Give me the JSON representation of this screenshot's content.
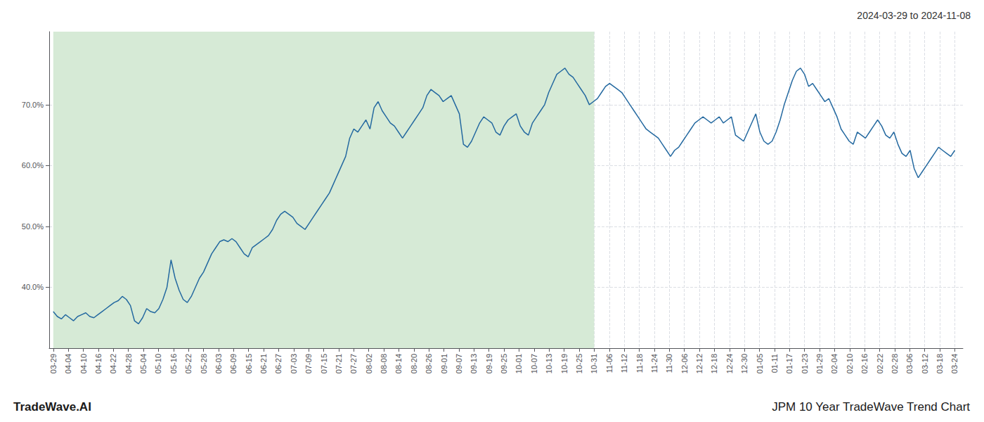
{
  "chart_data": {
    "type": "line",
    "title": "2024-03-29 to 2024-11-08",
    "annotations": [
      "TradeWave.AI",
      "JPM 10 Year TradeWave Trend Chart"
    ],
    "color": "#2469a0",
    "grid": true,
    "shaded_span": {
      "x": [
        0,
        133.2
      ],
      "color": "#d6ead6"
    },
    "xlim": [
      -1,
      224
    ],
    "xticks": [
      {
        "value": 0,
        "label": "03-29"
      },
      {
        "value": 3.7,
        "label": "04-04"
      },
      {
        "value": 7.4,
        "label": "04-10"
      },
      {
        "value": 11.1,
        "label": "04-16"
      },
      {
        "value": 14.8,
        "label": "04-22"
      },
      {
        "value": 18.5,
        "label": "04-28"
      },
      {
        "value": 22.2,
        "label": "05-04"
      },
      {
        "value": 25.9,
        "label": "05-10"
      },
      {
        "value": 29.6,
        "label": "05-16"
      },
      {
        "value": 33.3,
        "label": "05-22"
      },
      {
        "value": 37,
        "label": "05-28"
      },
      {
        "value": 40.7,
        "label": "06-03"
      },
      {
        "value": 44.4,
        "label": "06-09"
      },
      {
        "value": 48.1,
        "label": "06-15"
      },
      {
        "value": 51.8,
        "label": "06-21"
      },
      {
        "value": 55.5,
        "label": "06-27"
      },
      {
        "value": 59.2,
        "label": "07-03"
      },
      {
        "value": 62.9,
        "label": "07-09"
      },
      {
        "value": 66.6,
        "label": "07-15"
      },
      {
        "value": 70.3,
        "label": "07-21"
      },
      {
        "value": 74,
        "label": "07-27"
      },
      {
        "value": 77.7,
        "label": "08-02"
      },
      {
        "value": 81.4,
        "label": "08-08"
      },
      {
        "value": 85.1,
        "label": "08-14"
      },
      {
        "value": 88.8,
        "label": "08-20"
      },
      {
        "value": 92.5,
        "label": "08-26"
      },
      {
        "value": 96.2,
        "label": "09-01"
      },
      {
        "value": 99.9,
        "label": "09-07"
      },
      {
        "value": 103.6,
        "label": "09-13"
      },
      {
        "value": 107.3,
        "label": "09-19"
      },
      {
        "value": 111,
        "label": "09-25"
      },
      {
        "value": 114.7,
        "label": "10-01"
      },
      {
        "value": 118.4,
        "label": "10-07"
      },
      {
        "value": 122.1,
        "label": "10-13"
      },
      {
        "value": 125.8,
        "label": "10-19"
      },
      {
        "value": 129.5,
        "label": "10-25"
      },
      {
        "value": 133.2,
        "label": "10-31"
      },
      {
        "value": 136.9,
        "label": "11-06"
      },
      {
        "value": 140.6,
        "label": "11-12"
      },
      {
        "value": 144.3,
        "label": "11-18"
      },
      {
        "value": 148,
        "label": "11-24"
      },
      {
        "value": 151.7,
        "label": "11-30"
      },
      {
        "value": 155.4,
        "label": "12-06"
      },
      {
        "value": 159.1,
        "label": "12-12"
      },
      {
        "value": 162.8,
        "label": "12-18"
      },
      {
        "value": 166.5,
        "label": "12-24"
      },
      {
        "value": 170.2,
        "label": "12-30"
      },
      {
        "value": 173.9,
        "label": "01-05"
      },
      {
        "value": 177.6,
        "label": "01-11"
      },
      {
        "value": 181.3,
        "label": "01-17"
      },
      {
        "value": 185,
        "label": "01-23"
      },
      {
        "value": 188.7,
        "label": "01-29"
      },
      {
        "value": 192.4,
        "label": "02-04"
      },
      {
        "value": 196.1,
        "label": "02-10"
      },
      {
        "value": 199.8,
        "label": "02-16"
      },
      {
        "value": 203.5,
        "label": "02-22"
      },
      {
        "value": 207.2,
        "label": "02-28"
      },
      {
        "value": 210.9,
        "label": "03-06"
      },
      {
        "value": 214.6,
        "label": "03-12"
      },
      {
        "value": 218.3,
        "label": "03-18"
      },
      {
        "value": 222,
        "label": "03-24"
      }
    ],
    "ylim": [
      30,
      82
    ],
    "yticks": [
      {
        "value": 40.0,
        "label": "40.0%"
      },
      {
        "value": 50.0,
        "label": "50.0%"
      },
      {
        "value": 60.0,
        "label": "60.0%"
      },
      {
        "value": 70.0,
        "label": "70.0%"
      }
    ],
    "x": [
      0,
      1,
      2,
      3,
      4,
      5,
      6,
      7,
      8,
      9,
      10,
      11,
      12,
      13,
      14,
      15,
      16,
      17,
      18,
      19,
      20,
      21,
      22,
      23,
      24,
      25,
      26,
      27,
      28,
      29,
      30,
      31,
      32,
      33,
      34,
      35,
      36,
      37,
      38,
      39,
      40,
      41,
      42,
      43,
      44,
      45,
      46,
      47,
      48,
      49,
      50,
      51,
      52,
      53,
      54,
      55,
      56,
      57,
      58,
      59,
      60,
      61,
      62,
      63,
      64,
      65,
      66,
      67,
      68,
      69,
      70,
      71,
      72,
      73,
      74,
      75,
      76,
      77,
      78,
      79,
      80,
      81,
      82,
      83,
      84,
      85,
      86,
      87,
      88,
      89,
      90,
      91,
      92,
      93,
      94,
      95,
      96,
      97,
      98,
      99,
      100,
      101,
      102,
      103,
      104,
      105,
      106,
      107,
      108,
      109,
      110,
      111,
      112,
      113,
      114,
      115,
      116,
      117,
      118,
      119,
      120,
      121,
      122,
      123,
      124,
      125,
      126,
      127,
      128,
      129,
      130,
      131,
      132,
      133,
      134,
      135,
      136,
      137,
      138,
      139,
      140,
      141,
      142,
      143,
      144,
      145,
      146,
      147,
      148,
      149,
      150,
      151,
      152,
      153,
      154,
      155,
      156,
      157,
      158,
      159,
      160,
      161,
      162,
      163,
      164,
      165,
      166,
      167,
      168,
      169,
      170,
      171,
      172,
      173,
      174,
      175,
      176,
      177,
      178,
      179,
      180,
      181,
      182,
      183,
      184,
      185,
      186,
      187,
      188,
      189,
      190,
      191,
      192,
      193,
      194,
      195,
      196,
      197,
      198,
      199,
      200,
      201,
      202,
      203,
      204,
      205,
      206,
      207,
      208,
      209,
      210,
      211,
      212,
      213,
      214,
      215,
      216,
      217,
      218,
      219,
      220,
      221,
      222
    ],
    "values": [
      36.0,
      35.2,
      34.8,
      35.5,
      35.0,
      34.5,
      35.2,
      35.5,
      35.8,
      35.2,
      35.0,
      35.5,
      36.0,
      36.5,
      37.0,
      37.5,
      37.8,
      38.5,
      38.0,
      37.0,
      34.5,
      34.0,
      35.0,
      36.5,
      36.0,
      35.8,
      36.5,
      38.0,
      40.0,
      44.5,
      41.5,
      39.5,
      38.0,
      37.5,
      38.5,
      40.0,
      41.5,
      42.5,
      44.0,
      45.5,
      46.5,
      47.5,
      47.8,
      47.5,
      48.0,
      47.5,
      46.5,
      45.5,
      45.0,
      46.5,
      47.0,
      47.5,
      48.0,
      48.5,
      49.5,
      51.0,
      52.0,
      52.5,
      52.0,
      51.5,
      50.5,
      50.0,
      49.5,
      50.5,
      51.5,
      52.5,
      53.5,
      54.5,
      55.5,
      57.0,
      58.5,
      60.0,
      61.5,
      64.5,
      66.0,
      65.5,
      66.5,
      67.5,
      66.0,
      69.5,
      70.5,
      69.0,
      68.0,
      67.0,
      66.5,
      65.5,
      64.5,
      65.5,
      66.5,
      67.5,
      68.5,
      69.5,
      71.5,
      72.5,
      72.0,
      71.5,
      70.5,
      71.0,
      71.5,
      70.0,
      68.5,
      63.5,
      63.0,
      64.0,
      65.5,
      67.0,
      68.0,
      67.5,
      67.0,
      65.5,
      65.0,
      66.5,
      67.5,
      68.0,
      68.5,
      66.5,
      65.5,
      65.0,
      67.0,
      68.0,
      69.0,
      70.0,
      72.0,
      73.5,
      75.0,
      75.5,
      76.0,
      75.0,
      74.5,
      73.5,
      72.5,
      71.5,
      70.0,
      70.5,
      71.0,
      72.0,
      73.0,
      73.5,
      73.0,
      72.5,
      72.0,
      71.0,
      70.0,
      69.0,
      68.0,
      67.0,
      66.0,
      65.5,
      65.0,
      64.5,
      63.5,
      62.5,
      61.5,
      62.5,
      63.0,
      64.0,
      65.0,
      66.0,
      67.0,
      67.5,
      68.0,
      67.5,
      67.0,
      67.5,
      68.0,
      67.0,
      67.5,
      68.0,
      65.0,
      64.5,
      64.0,
      65.5,
      67.0,
      68.5,
      65.5,
      64.0,
      63.5,
      64.0,
      65.5,
      67.5,
      70.0,
      72.0,
      74.0,
      75.5,
      76.0,
      75.0,
      73.0,
      73.5,
      72.5,
      71.5,
      70.5,
      71.0,
      69.5,
      68.0,
      66.0,
      65.0,
      64.0,
      63.5,
      65.5,
      65.0,
      64.5,
      65.5,
      66.5,
      67.5,
      66.5,
      65.0,
      64.5,
      65.5,
      63.5,
      62.0,
      61.5,
      62.5,
      59.5,
      58.0,
      59.0,
      60.0,
      61.0,
      62.0,
      63.0,
      62.5,
      62.0,
      61.5,
      62.5
    ]
  }
}
